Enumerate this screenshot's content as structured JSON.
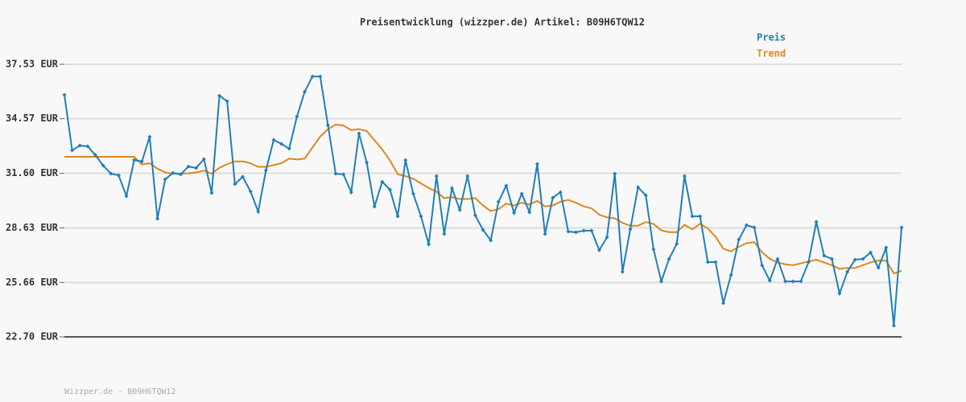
{
  "chart_data": {
    "type": "line",
    "title": "Preisentwicklung (wizzper.de) Artikel: B09H6TQW12",
    "footer": "Wizzper.de - B09H6TQW12",
    "ylim": [
      22.7,
      37.53
    ],
    "yticks": [
      {
        "value": 22.7,
        "label": "22.70 EUR"
      },
      {
        "value": 25.66,
        "label": "25.66 EUR"
      },
      {
        "value": 28.63,
        "label": "28.63 EUR"
      },
      {
        "value": 31.6,
        "label": "31.60 EUR"
      },
      {
        "value": 34.57,
        "label": "34.57 EUR"
      },
      {
        "value": 37.53,
        "label": "37.53 EUR"
      }
    ],
    "grid": true,
    "legend": "top-right",
    "series": [
      {
        "name": "Preis",
        "color": "#1f7fb8",
        "markers": true,
        "values": [
          35.87,
          32.85,
          33.11,
          33.07,
          32.59,
          32.02,
          31.58,
          31.49,
          30.36,
          32.32,
          32.24,
          33.59,
          29.13,
          31.27,
          31.62,
          31.54,
          31.97,
          31.89,
          32.37,
          30.53,
          35.82,
          35.52,
          31.01,
          31.41,
          30.62,
          29.52,
          31.76,
          33.42,
          33.2,
          32.94,
          34.69,
          36.04,
          36.87,
          36.87,
          34.21,
          31.58,
          31.54,
          30.57,
          33.77,
          32.19,
          29.79,
          31.14,
          30.71,
          29.26,
          32.32,
          30.49,
          29.26,
          27.73,
          31.45,
          28.3,
          30.79,
          29.61,
          31.45,
          29.31,
          28.52,
          27.95,
          30.05,
          30.93,
          29.44,
          30.49,
          29.48,
          32.11,
          28.3,
          30.27,
          30.57,
          28.43,
          28.39,
          28.48,
          28.48,
          27.42,
          28.12,
          31.58,
          26.24,
          28.56,
          30.84,
          30.4,
          27.47,
          25.72,
          26.94,
          27.77,
          31.45,
          29.26,
          29.26,
          26.77,
          26.77,
          24.54,
          26.07,
          28.0,
          28.78,
          28.65,
          26.59,
          25.76,
          26.94,
          25.72,
          25.72,
          25.72,
          26.77,
          28.96,
          27.12,
          26.94,
          25.06,
          26.24,
          26.9,
          26.94,
          27.29,
          26.46,
          27.56,
          23.31,
          28.65
        ]
      },
      {
        "name": "Trend",
        "color": "#e0861c",
        "markers": false,
        "values": [
          32.5,
          32.5,
          32.5,
          32.5,
          32.5,
          32.5,
          32.5,
          32.5,
          32.5,
          32.5,
          32.08,
          32.15,
          31.85,
          31.65,
          31.58,
          31.58,
          31.6,
          31.65,
          31.75,
          31.58,
          31.9,
          32.1,
          32.25,
          32.25,
          32.15,
          31.95,
          31.95,
          32.05,
          32.15,
          32.4,
          32.35,
          32.4,
          33.0,
          33.6,
          34.0,
          34.25,
          34.2,
          33.95,
          34.0,
          33.9,
          33.4,
          32.9,
          32.3,
          31.55,
          31.45,
          31.3,
          31.05,
          30.8,
          30.6,
          30.25,
          30.3,
          30.2,
          30.2,
          30.25,
          29.85,
          29.55,
          29.65,
          29.95,
          29.85,
          30.0,
          29.9,
          30.1,
          29.8,
          29.85,
          30.05,
          30.15,
          30.0,
          29.8,
          29.7,
          29.35,
          29.2,
          29.15,
          28.9,
          28.75,
          28.75,
          28.95,
          28.85,
          28.5,
          28.4,
          28.4,
          28.8,
          28.55,
          28.85,
          28.6,
          28.15,
          27.5,
          27.35,
          27.6,
          27.8,
          27.85,
          27.3,
          26.95,
          26.75,
          26.65,
          26.6,
          26.7,
          26.8,
          26.9,
          26.75,
          26.6,
          26.4,
          26.45,
          26.45,
          26.6,
          26.75,
          26.85,
          26.85,
          26.15,
          26.3
        ]
      }
    ]
  }
}
